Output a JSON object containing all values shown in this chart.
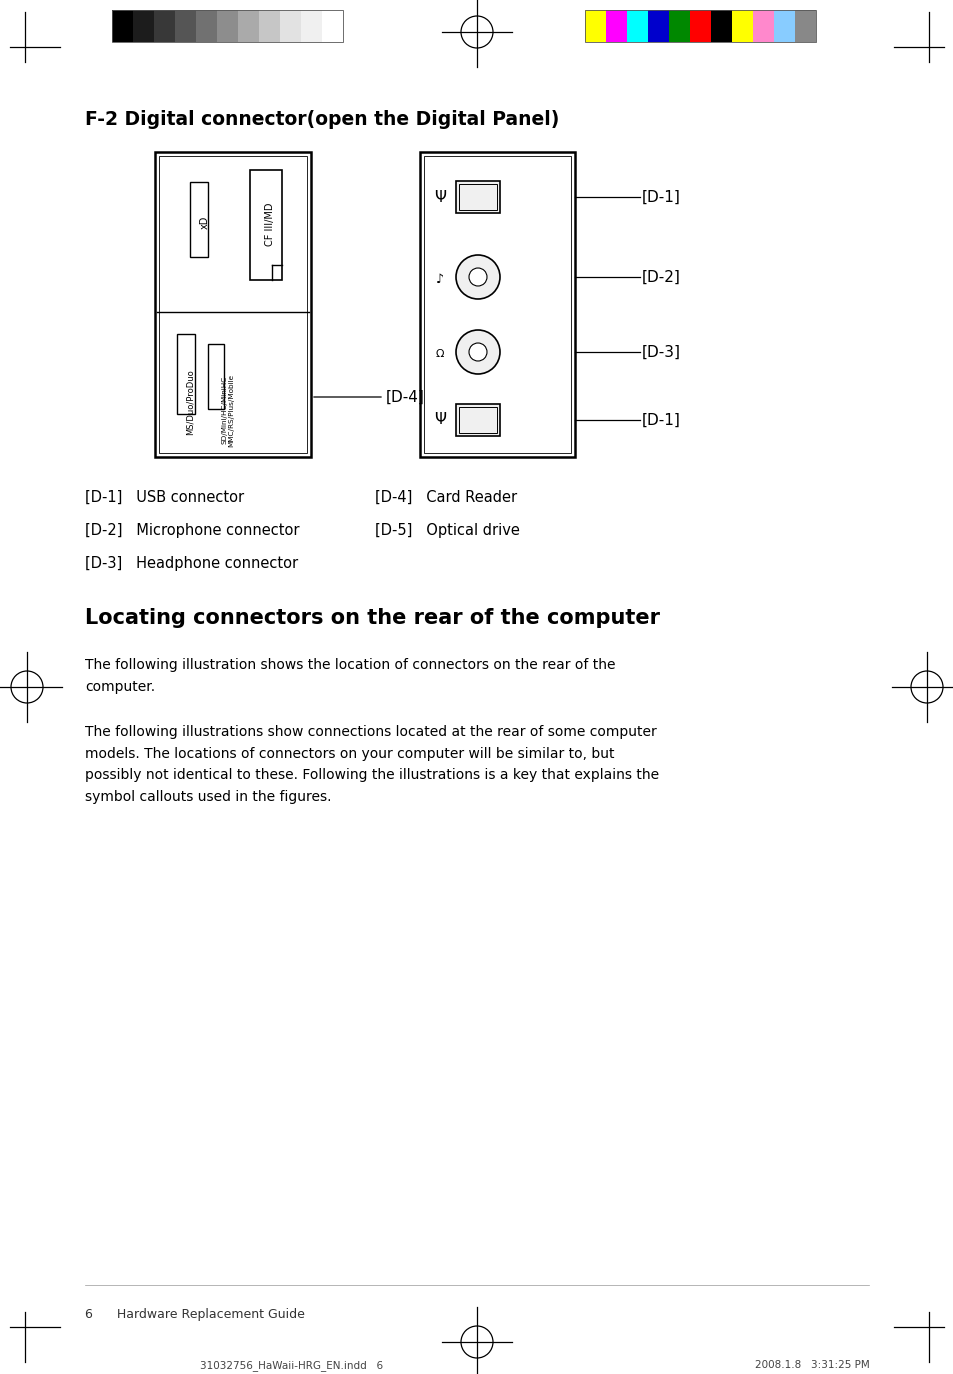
{
  "title": "F-2 Digital connector(open the Digital Panel)",
  "section_title": "Locating connectors on the rear of the computer",
  "para1": "The following illustration shows the location of connectors on the rear of the\ncomputer.",
  "para2": "The following illustrations show connections located at the rear of some computer\nmodels. The locations of connectors on your computer will be similar to, but\npossibly not identical to these. Following the illustrations is a key that explains the\nsymbol callouts used in the figures.",
  "legend": [
    "[D-1]   USB connector",
    "[D-2]   Microphone connector",
    "[D-3]   Headphone connector"
  ],
  "legend2": [
    "[D-4]   Card Reader",
    "[D-5]   Optical drive"
  ],
  "footer_left": "6      Hardware Replacement Guide",
  "footer_file": "31032756_HaWaii-HRG_EN.indd   6",
  "footer_date": "2008.1.8   3:31:25 PM",
  "bg_color": "#ffffff",
  "text_color": "#000000",
  "line_color": "#000000",
  "gray_colors": [
    "#000000",
    "#1c1c1c",
    "#383838",
    "#555555",
    "#717171",
    "#8d8d8d",
    "#aaaaaa",
    "#c6c6c6",
    "#e2e2e2",
    "#f0f0f0",
    "#ffffff"
  ],
  "color_colors": [
    "#ffff00",
    "#ff00ff",
    "#00ffff",
    "#0000cc",
    "#008800",
    "#ff0000",
    "#000000",
    "#ffff00",
    "#ff88cc",
    "#88ccff",
    "#888888"
  ]
}
